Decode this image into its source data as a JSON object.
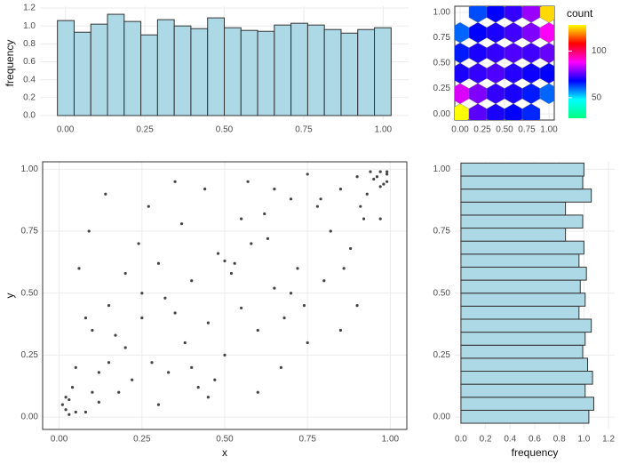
{
  "chart_data": [
    {
      "type": "histogram",
      "ylabel": "frequency",
      "bins": [
        -0.025,
        0.0275,
        0.08,
        0.1325,
        0.185,
        0.2375,
        0.29,
        0.3425,
        0.395,
        0.4475,
        0.5,
        0.5525,
        0.605,
        0.6575,
        0.71,
        0.7625,
        0.815,
        0.8675,
        0.92,
        0.9725,
        1.025
      ],
      "values": [
        1.06,
        0.93,
        1.02,
        1.13,
        1.05,
        0.9,
        1.07,
        1.0,
        0.97,
        1.09,
        0.98,
        0.95,
        0.94,
        1.01,
        1.03,
        1.01,
        0.96,
        0.92,
        0.96,
        0.98
      ],
      "color": "#add8e6",
      "edgecolor": "#333333",
      "xlim": [
        -0.08,
        1.08
      ],
      "ylim": [
        -0.05,
        1.22
      ],
      "xticks": [
        {
          "value": 0,
          "label": "0.00"
        },
        {
          "value": 0.25,
          "label": "0.25"
        },
        {
          "value": 0.5,
          "label": "0.50"
        },
        {
          "value": 0.75,
          "label": "0.75"
        },
        {
          "value": 1,
          "label": "1.00"
        }
      ],
      "yticks": [
        {
          "value": 0,
          "label": "0.0"
        },
        {
          "value": 0.2,
          "label": "0.2"
        },
        {
          "value": 0.4,
          "label": "0.4"
        },
        {
          "value": 0.6,
          "label": "0.6"
        },
        {
          "value": 0.8,
          "label": "0.8"
        },
        {
          "value": 1,
          "label": "1.0"
        },
        {
          "value": 1.2,
          "label": "1.2"
        }
      ],
      "grid": true
    },
    {
      "type": "hexbin",
      "legend_title": "count",
      "x": [
        0,
        0.2,
        0.4,
        0.6,
        0.8,
        0,
        0.2,
        0.4,
        0.6,
        0.8,
        1,
        0,
        0.2,
        0.4,
        0.6,
        0.8,
        1,
        0,
        0.2,
        0.4,
        0.6,
        0.8,
        1,
        0,
        0.2,
        0.4,
        0.6,
        0.8,
        1,
        0.2,
        0.4,
        0.6,
        0.8,
        1
      ],
      "y": [
        0,
        0,
        0,
        0,
        0,
        0.2,
        0.2,
        0.2,
        0.2,
        0.2,
        0.2,
        0.4,
        0.4,
        0.4,
        0.4,
        0.4,
        0.4,
        0.6,
        0.6,
        0.6,
        0.6,
        0.6,
        0.6,
        0.8,
        0.8,
        0.8,
        0.8,
        0.8,
        0.8,
        1,
        1,
        1,
        1,
        1
      ],
      "values": [
        130,
        75,
        70,
        68,
        65,
        85,
        78,
        72,
        70,
        66,
        60,
        70,
        72,
        74,
        71,
        69,
        68,
        66,
        70,
        72,
        74,
        73,
        76,
        60,
        68,
        70,
        73,
        78,
        88,
        62,
        68,
        72,
        80,
        125
      ],
      "colorscale": [
        "#00ff80",
        "#00ffff",
        "#0000ff",
        "#ff00ff",
        "#ff0000",
        "#ffff00"
      ],
      "clim": [
        28,
        128
      ],
      "cticks": [
        50,
        100
      ],
      "xlim": [
        -0.06,
        1.06
      ],
      "ylim": [
        -0.06,
        1.06
      ],
      "xticks": [
        {
          "value": 0,
          "label": "0.00"
        },
        {
          "value": 0.25,
          "label": "0.25"
        },
        {
          "value": 0.5,
          "label": "0.50"
        },
        {
          "value": 0.75,
          "label": "0.75"
        },
        {
          "value": 1,
          "label": "1.00"
        }
      ],
      "yticks": [
        {
          "value": 0,
          "label": "0.00"
        },
        {
          "value": 0.25,
          "label": "0.25"
        },
        {
          "value": 0.5,
          "label": "0.50"
        },
        {
          "value": 0.75,
          "label": "0.75"
        },
        {
          "value": 1,
          "label": "1.00"
        }
      ],
      "grid": true
    },
    {
      "type": "scatter",
      "xlabel": "x",
      "ylabel": "y",
      "color": "#444444",
      "x": [
        0.02,
        0.01,
        0.03,
        0.05,
        0.02,
        0.08,
        0.1,
        0.04,
        0.12,
        0.15,
        0.06,
        0.18,
        0.2,
        0.09,
        0.22,
        0.25,
        0.14,
        0.28,
        0.3,
        0.17,
        0.33,
        0.35,
        0.24,
        0.38,
        0.4,
        0.27,
        0.42,
        0.45,
        0.32,
        0.48,
        0.5,
        0.37,
        0.52,
        0.55,
        0.44,
        0.58,
        0.6,
        0.47,
        0.62,
        0.65,
        0.53,
        0.68,
        0.7,
        0.57,
        0.72,
        0.75,
        0.63,
        0.78,
        0.8,
        0.67,
        0.82,
        0.85,
        0.74,
        0.88,
        0.9,
        0.79,
        0.92,
        0.95,
        0.97,
        0.98,
        0.99,
        0.96,
        0.94,
        0.99,
        0.93,
        0.97,
        0.86,
        0.91,
        0.05,
        0.12,
        0.3,
        0.08,
        0.6,
        0.2,
        0.45,
        0.7,
        0.15,
        0.35,
        0.85,
        0.55,
        0.25,
        0.4,
        0.65,
        0.75,
        0.1,
        0.5,
        0.9,
        0.03,
        0.97,
        0.99
      ],
      "y": [
        0.03,
        0.05,
        0.01,
        0.2,
        0.08,
        0.02,
        0.35,
        0.12,
        0.06,
        0.45,
        0.6,
        0.1,
        0.28,
        0.75,
        0.15,
        0.5,
        0.9,
        0.22,
        0.62,
        0.33,
        0.18,
        0.42,
        0.7,
        0.3,
        0.55,
        0.85,
        0.12,
        0.38,
        0.48,
        0.66,
        0.25,
        0.78,
        0.58,
        0.44,
        0.92,
        0.7,
        0.35,
        0.15,
        0.82,
        0.52,
        0.62,
        0.4,
        0.88,
        0.95,
        0.6,
        0.3,
        0.72,
        0.85,
        0.55,
        0.2,
        0.75,
        0.92,
        0.45,
        0.68,
        0.97,
        0.88,
        0.8,
        0.96,
        0.99,
        0.94,
        0.98,
        0.97,
        0.99,
        0.95,
        0.9,
        0.93,
        0.6,
        0.85,
        0.02,
        0.18,
        0.05,
        0.4,
        0.1,
        0.58,
        0.08,
        0.5,
        0.22,
        0.95,
        0.35,
        0.8,
        0.4,
        0.2,
        0.92,
        0.98,
        0.1,
        0.63,
        0.45,
        0.07,
        0.8,
        0.99
      ],
      "xlim": [
        -0.05,
        1.05
      ],
      "ylim": [
        -0.05,
        1.03
      ],
      "xticks": [
        {
          "value": 0,
          "label": "0.00"
        },
        {
          "value": 0.25,
          "label": "0.25"
        },
        {
          "value": 0.5,
          "label": "0.50"
        },
        {
          "value": 0.75,
          "label": "0.75"
        },
        {
          "value": 1,
          "label": "1.00"
        }
      ],
      "yticks": [
        {
          "value": 0,
          "label": "0.00"
        },
        {
          "value": 0.25,
          "label": "0.25"
        },
        {
          "value": 0.5,
          "label": "0.50"
        },
        {
          "value": 0.75,
          "label": "0.75"
        },
        {
          "value": 1,
          "label": "1.00"
        }
      ],
      "grid": true
    },
    {
      "type": "histogram",
      "orientation": "horizontal",
      "xlabel": "frequency",
      "bins": [
        -0.025,
        0.0275,
        0.08,
        0.1325,
        0.185,
        0.2375,
        0.29,
        0.3425,
        0.395,
        0.4475,
        0.5,
        0.5525,
        0.605,
        0.6575,
        0.71,
        0.7625,
        0.815,
        0.8675,
        0.92,
        0.9725,
        1.025
      ],
      "values": [
        1.04,
        1.08,
        1.01,
        1.07,
        1.03,
        0.99,
        1.01,
        1.06,
        0.96,
        1.01,
        0.97,
        1.02,
        0.96,
        1.0,
        0.85,
        0.99,
        0.85,
        1.06,
        0.99,
        1.0
      ],
      "color": "#add8e6",
      "edgecolor": "#333333",
      "xlim": [
        -0.05,
        1.25
      ],
      "ylim": [
        -0.05,
        1.03
      ],
      "xticks": [
        {
          "value": 0,
          "label": "0.0"
        },
        {
          "value": 0.2,
          "label": "0.2"
        },
        {
          "value": 0.4,
          "label": "0.4"
        },
        {
          "value": 0.6,
          "label": "0.6"
        },
        {
          "value": 0.8,
          "label": "0.8"
        },
        {
          "value": 1,
          "label": "1.0"
        },
        {
          "value": 1.2,
          "label": "1.2"
        }
      ],
      "yticks": [
        {
          "value": 0,
          "label": "0.00"
        },
        {
          "value": 0.25,
          "label": "0.25"
        },
        {
          "value": 0.5,
          "label": "0.50"
        },
        {
          "value": 0.75,
          "label": "0.75"
        },
        {
          "value": 1,
          "label": "1.00"
        }
      ],
      "grid": true
    }
  ]
}
